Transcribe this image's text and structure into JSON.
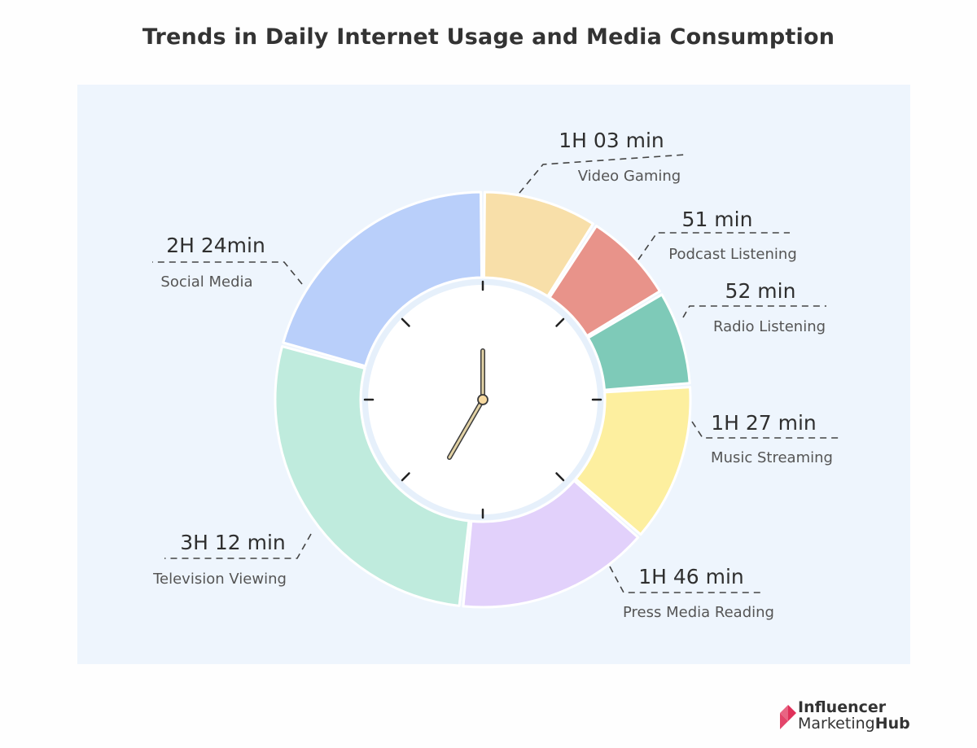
{
  "chart_data": {
    "type": "pie",
    "title": "Trends in Daily Internet Usage and Media Consumption",
    "series": [
      {
        "name": "Video Gaming",
        "label": "1H 03 min",
        "minutes": 63,
        "color": "#f8dfa9"
      },
      {
        "name": "Podcast Listening",
        "label": "51 min",
        "minutes": 51,
        "color": "#e8938a"
      },
      {
        "name": "Radio Listening",
        "label": "52 min",
        "minutes": 52,
        "color": "#7ecab8"
      },
      {
        "name": "Music Streaming",
        "label": "1H 27 min",
        "minutes": 87,
        "color": "#fdef9f"
      },
      {
        "name": "Press Media Reading",
        "label": "1H 46 min",
        "minutes": 106,
        "color": "#e2d1fb"
      },
      {
        "name": "Television Viewing",
        "label": "3H 12 min",
        "minutes": 192,
        "color": "#bfebdd"
      },
      {
        "name": "Social Media",
        "label": "2H 24min",
        "minutes": 144,
        "color": "#b9cffa"
      }
    ],
    "clock": {
      "hour": 7,
      "minute": 0
    }
  },
  "brand": {
    "line1": "Influencer",
    "line2a": "Marketing",
    "line2b": "Hub",
    "color": "#e0315a"
  }
}
